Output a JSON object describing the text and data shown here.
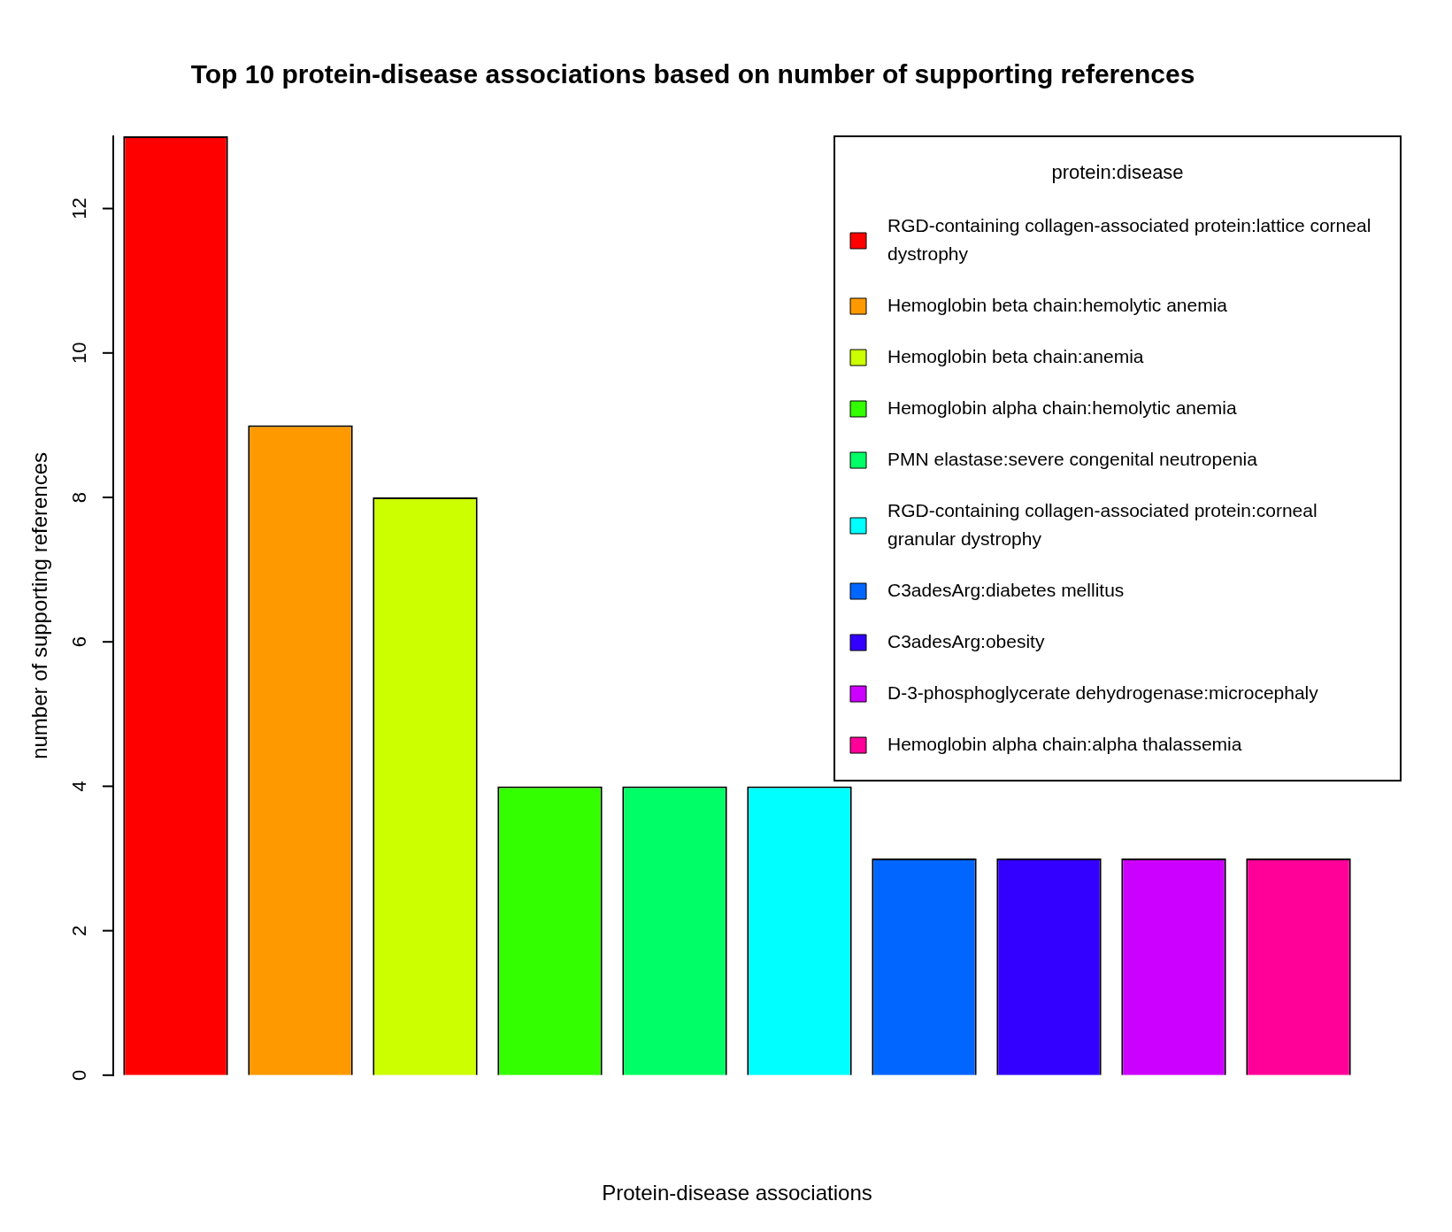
{
  "chart_data": {
    "type": "bar",
    "stacked": true,
    "title": "Top 10 protein-disease associations based on number of supporting references",
    "xlabel": "Protein-disease associations",
    "ylabel": "number of supporting references",
    "legend_title": "protein:disease",
    "categories": [
      null,
      null,
      null,
      null,
      null,
      null,
      null,
      null,
      null,
      null
    ],
    "series": [
      {
        "name": "RGD-containing collagen-associated protein:lattice corneal dystrophy",
        "color": "#ff0000",
        "values": [
          13,
          null,
          null,
          null,
          null,
          null,
          null,
          null,
          null,
          null
        ]
      },
      {
        "name": "Hemoglobin beta chain:hemolytic anemia",
        "color": "#ff9900",
        "values": [
          null,
          9,
          null,
          null,
          null,
          null,
          null,
          null,
          null,
          null
        ]
      },
      {
        "name": "Hemoglobin beta chain:anemia",
        "color": "#ccff00",
        "values": [
          null,
          null,
          8,
          null,
          null,
          null,
          null,
          null,
          null,
          null
        ]
      },
      {
        "name": "Hemoglobin alpha chain:hemolytic anemia",
        "color": "#33ff00",
        "values": [
          null,
          null,
          null,
          4,
          null,
          null,
          null,
          null,
          null,
          null
        ]
      },
      {
        "name": "PMN elastase:severe congenital neutropenia",
        "color": "#00ff66",
        "values": [
          null,
          null,
          null,
          null,
          4,
          null,
          null,
          null,
          null,
          null
        ]
      },
      {
        "name": "RGD-containing collagen-associated protein:corneal granular dystrophy",
        "color": "#00ffff",
        "values": [
          null,
          null,
          null,
          null,
          null,
          4,
          null,
          null,
          null,
          null
        ]
      },
      {
        "name": "C3adesArg:diabetes mellitus",
        "color": "#0066ff",
        "values": [
          null,
          null,
          null,
          null,
          null,
          null,
          3,
          null,
          null,
          null
        ]
      },
      {
        "name": "C3adesArg:obesity",
        "color": "#3300ff",
        "values": [
          null,
          null,
          null,
          null,
          null,
          null,
          null,
          3,
          null,
          null
        ]
      },
      {
        "name": "D-3-phosphoglycerate dehydrogenase:microcephaly",
        "color": "#cc00ff",
        "values": [
          null,
          null,
          null,
          null,
          null,
          null,
          null,
          null,
          3,
          null
        ]
      },
      {
        "name": "Hemoglobin alpha chain:alpha thalassemia",
        "color": "#ff0099",
        "values": [
          null,
          null,
          null,
          null,
          null,
          null,
          null,
          null,
          null,
          3
        ]
      }
    ],
    "ylim": [
      0,
      13
    ],
    "yticks": [
      0,
      2,
      4,
      6,
      8,
      10,
      12
    ],
    "grid": false,
    "legend": "top right"
  }
}
